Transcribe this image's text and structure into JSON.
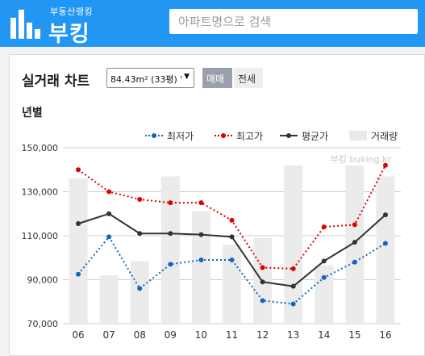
{
  "brand": {
    "subtitle": "부동산랭킹",
    "name": "부킹"
  },
  "search": {
    "placeholder": "아파트명으로 검색"
  },
  "card": {
    "title": "실거래 차트",
    "area_select": "84.43m² (33평) '",
    "tabs": [
      "매매",
      "전세"
    ],
    "active_tab": "매매",
    "section": "년별"
  },
  "chart_data": {
    "type": "line",
    "categories": [
      "06",
      "07",
      "08",
      "09",
      "10",
      "11",
      "12",
      "13",
      "14",
      "15",
      "16"
    ],
    "ylim": [
      70000,
      150000
    ],
    "yticks": [
      "70,000",
      "90,000",
      "110,000",
      "130,000",
      "150,000"
    ],
    "watermark": "부킹 buking.kr",
    "legend": [
      "최저가",
      "최고가",
      "평균가",
      "거래량"
    ],
    "series": [
      {
        "name": "최저가",
        "style": "dotted",
        "color": "#1565c0",
        "values": [
          92500,
          109500,
          86000,
          97000,
          99000,
          99000,
          80500,
          79000,
          91000,
          98000,
          106500
        ]
      },
      {
        "name": "최고가",
        "style": "dotted",
        "color": "#e00000",
        "values": [
          140000,
          130000,
          126500,
          125000,
          125000,
          117000,
          95500,
          95000,
          114000,
          115000,
          142000
        ]
      },
      {
        "name": "평균가",
        "style": "solid",
        "color": "#333333",
        "values": [
          115500,
          120000,
          111000,
          111000,
          110500,
          109500,
          89000,
          87000,
          98500,
          107000,
          119500
        ]
      },
      {
        "name": "거래량",
        "style": "bar",
        "color": "#ebebeb",
        "values": [
          136000,
          92000,
          98500,
          137000,
          121000,
          106000,
          109000,
          142000,
          96500,
          142000,
          137000
        ]
      }
    ]
  }
}
